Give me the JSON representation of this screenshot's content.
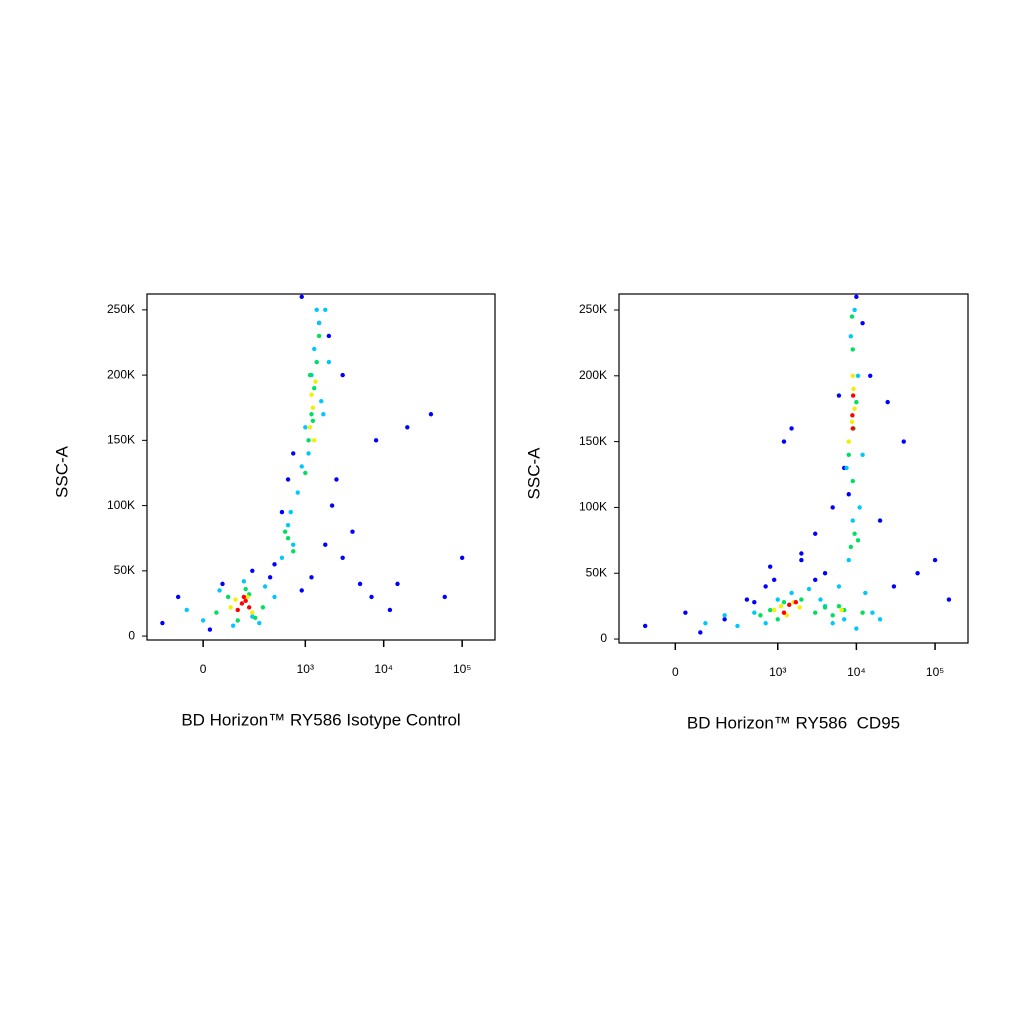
{
  "chart_data": [
    {
      "type": "scatter",
      "xlabel": "BD Horizon™ RY586 Isotype Control",
      "ylabel": "SSC-A",
      "xscale": "biex",
      "xlim": [
        -250,
        262144
      ],
      "ylim": [
        -3000,
        262144
      ],
      "xticks": [
        0,
        {
          "value": 1000,
          "label": "10³"
        },
        {
          "value": 10000,
          "label": "10⁴"
        },
        {
          "value": 100000,
          "label": "10⁵"
        }
      ],
      "yticks": [
        0,
        {
          "value": 50000,
          "label": "50K"
        },
        {
          "value": 100000,
          "label": "100K"
        },
        {
          "value": 150000,
          "label": "150K"
        },
        {
          "value": 200000,
          "label": "200K"
        },
        {
          "value": 250000,
          "label": "250K"
        }
      ],
      "series": [
        {
          "color": "#0000ff",
          "x": [
            -150,
            -80,
            20,
            60,
            200,
            350,
            500,
            700,
            900,
            1500,
            2000,
            2500,
            3000,
            4000,
            5000,
            7000,
            12000,
            20000,
            40000,
            60000,
            100000,
            3000,
            2200,
            1800,
            600,
            400,
            1200,
            8000,
            15000,
            900
          ],
          "values": [
            10000,
            30000,
            5000,
            40000,
            50000,
            45000,
            95000,
            140000,
            260000,
            240000,
            230000,
            120000,
            60000,
            80000,
            40000,
            30000,
            20000,
            160000,
            170000,
            30000,
            60000,
            200000,
            100000,
            70000,
            120000,
            55000,
            45000,
            150000,
            40000,
            35000
          ]
        },
        {
          "color": "#00c8ff",
          "x": [
            -50,
            0,
            50,
            100,
            250,
            300,
            400,
            200,
            150,
            500,
            600,
            700,
            800,
            650,
            900,
            1000,
            1200,
            1500,
            1800,
            1300,
            1100,
            1600,
            2000,
            1700,
            1400
          ],
          "values": [
            20000,
            12000,
            35000,
            8000,
            10000,
            38000,
            30000,
            15000,
            42000,
            60000,
            85000,
            70000,
            110000,
            95000,
            130000,
            160000,
            200000,
            240000,
            250000,
            220000,
            140000,
            180000,
            210000,
            170000,
            250000
          ]
        },
        {
          "color": "#00e060",
          "x": [
            40,
            80,
            180,
            220,
            280,
            120,
            160,
            600,
            700,
            550,
            1000,
            1100,
            1200,
            1300,
            1400,
            1500,
            1150,
            1250
          ],
          "values": [
            18000,
            30000,
            32000,
            14000,
            22000,
            12000,
            36000,
            75000,
            65000,
            80000,
            125000,
            150000,
            170000,
            190000,
            210000,
            230000,
            200000,
            165000
          ]
        },
        {
          "color": "#f0f000",
          "x": [
            90,
            110,
            170,
            200,
            1150,
            1250,
            1350,
            1200,
            1300
          ],
          "values": [
            22000,
            28000,
            30000,
            18000,
            160000,
            175000,
            195000,
            185000,
            150000
          ]
        },
        {
          "color": "#ff0000",
          "x": [
            120,
            140,
            160,
            180,
            150
          ],
          "values": [
            20000,
            25000,
            27000,
            22000,
            30000
          ]
        }
      ]
    },
    {
      "type": "scatter",
      "xlabel": "BD Horizon™ RY586  CD95",
      "ylabel": "SSC-A",
      "xscale": "biex",
      "xlim": [
        -250,
        262144
      ],
      "ylim": [
        -3000,
        262144
      ],
      "xticks": [
        0,
        {
          "value": 1000,
          "label": "10³"
        },
        {
          "value": 10000,
          "label": "10⁴"
        },
        {
          "value": 100000,
          "label": "10⁵"
        }
      ],
      "yticks": [
        0,
        {
          "value": 50000,
          "label": "50K"
        },
        {
          "value": 100000,
          "label": "100K"
        },
        {
          "value": 150000,
          "label": "150K"
        },
        {
          "value": 200000,
          "label": "200K"
        },
        {
          "value": 250000,
          "label": "250K"
        }
      ],
      "series": [
        {
          "color": "#0000ff",
          "x": [
            -100,
            30,
            80,
            200,
            400,
            700,
            900,
            1200,
            2000,
            3000,
            5000,
            7000,
            15000,
            25000,
            40000,
            60000,
            100000,
            150000,
            3000,
            2000,
            1500,
            4000,
            6000,
            12000,
            20000,
            30000,
            500,
            800,
            10000,
            8000
          ],
          "values": [
            10000,
            20000,
            5000,
            15000,
            30000,
            40000,
            45000,
            150000,
            60000,
            80000,
            100000,
            130000,
            200000,
            180000,
            150000,
            50000,
            60000,
            30000,
            45000,
            65000,
            160000,
            50000,
            185000,
            240000,
            90000,
            40000,
            28000,
            55000,
            260000,
            110000
          ]
        },
        {
          "color": "#00c8ff",
          "x": [
            100,
            200,
            300,
            500,
            700,
            1000,
            1500,
            2500,
            3500,
            5000,
            7000,
            10000,
            13000,
            16000,
            20000,
            8000,
            9000,
            11000,
            7500,
            8500,
            9500,
            10500,
            12000,
            6000,
            4000
          ],
          "values": [
            12000,
            18000,
            10000,
            20000,
            12000,
            30000,
            35000,
            38000,
            30000,
            12000,
            15000,
            8000,
            35000,
            20000,
            15000,
            60000,
            90000,
            100000,
            130000,
            230000,
            250000,
            200000,
            140000,
            40000,
            25000
          ]
        },
        {
          "color": "#00e060",
          "x": [
            600,
            800,
            1000,
            1200,
            2000,
            3000,
            4000,
            5000,
            6000,
            7000,
            12000,
            8500,
            9500,
            9000,
            8000,
            10000,
            9000,
            8800,
            9200,
            10500
          ],
          "values": [
            18000,
            22000,
            15000,
            28000,
            30000,
            20000,
            24000,
            18000,
            25000,
            22000,
            20000,
            70000,
            80000,
            120000,
            140000,
            180000,
            220000,
            245000,
            160000,
            75000
          ]
        },
        {
          "color": "#f0f000",
          "x": [
            900,
            1100,
            1300,
            1600,
            1900,
            6500,
            8000,
            8800,
            9200,
            9000,
            9500
          ],
          "values": [
            22000,
            25000,
            18000,
            28000,
            24000,
            22000,
            150000,
            165000,
            190000,
            200000,
            175000
          ]
        },
        {
          "color": "#ff0000",
          "x": [
            1200,
            1400,
            1700,
            8900,
            9100,
            9000
          ],
          "values": [
            20000,
            26000,
            28000,
            170000,
            185000,
            160000
          ]
        }
      ]
    }
  ]
}
